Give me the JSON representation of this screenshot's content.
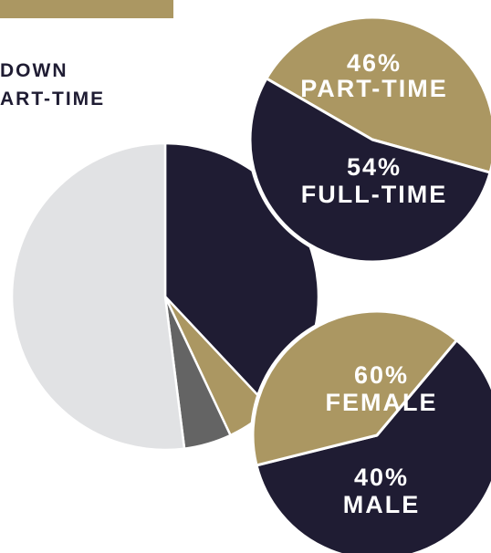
{
  "heading": {
    "line1": "DOWN",
    "line2": "ART-TIME"
  },
  "colors": {
    "navy": "#1f1c33",
    "gold": "#ab9762",
    "light_gray": "#e1e2e4",
    "dark_gray": "#646464"
  },
  "chart_data": [
    {
      "type": "pie",
      "title": "",
      "slices": [
        {
          "value": 38,
          "color": "#1f1c33"
        },
        {
          "value": 5,
          "color": "#ab9762"
        },
        {
          "value": 5,
          "color": "#646464"
        },
        {
          "value": 52,
          "color": "#e1e2e4"
        }
      ]
    },
    {
      "type": "pie",
      "title": "",
      "slices": [
        {
          "label": "PART-TIME",
          "percent_label": "46%",
          "value": 46,
          "color": "#ab9762"
        },
        {
          "label": "FULL-TIME",
          "percent_label": "54%",
          "value": 54,
          "color": "#1f1c33"
        }
      ]
    },
    {
      "type": "pie",
      "title": "",
      "slices": [
        {
          "label": "FEMALE",
          "percent_label": "60%",
          "value": 60,
          "color": "#1f1c33"
        },
        {
          "label": "MALE",
          "percent_label": "40%",
          "value": 40,
          "color": "#ab9762"
        }
      ]
    }
  ]
}
